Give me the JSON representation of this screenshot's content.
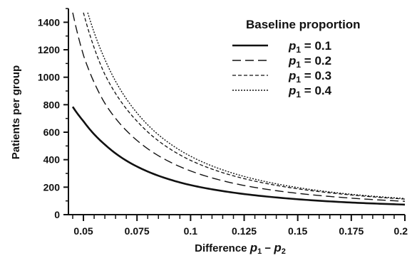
{
  "chart_data": {
    "type": "line",
    "title": "",
    "xlabel": {
      "prefix": "Difference ",
      "var_a": "p",
      "sub_a": "1",
      "minus": " − ",
      "var_b": "p",
      "sub_b": "2"
    },
    "ylabel": "Patients per group",
    "xlim": [
      0.043,
      0.2
    ],
    "ylim": [
      0,
      1500
    ],
    "x_ticks": [
      {
        "value": 0.05,
        "label": "0.05"
      },
      {
        "value": 0.075,
        "label": "0.075"
      },
      {
        "value": 0.1,
        "label": "0.1"
      },
      {
        "value": 0.125,
        "label": "0.125"
      },
      {
        "value": 0.15,
        "label": "0.15"
      },
      {
        "value": 0.175,
        "label": "0.175"
      },
      {
        "value": 0.2,
        "label": "0.2"
      }
    ],
    "x_minor_step": 0.005,
    "y_ticks": [
      {
        "value": 0,
        "label": "0"
      },
      {
        "value": 200,
        "label": "200"
      },
      {
        "value": 400,
        "label": "400"
      },
      {
        "value": 600,
        "label": "600"
      },
      {
        "value": 800,
        "label": "800"
      },
      {
        "value": 1000,
        "label": "1000"
      },
      {
        "value": 1200,
        "label": "1200"
      },
      {
        "value": 1400,
        "label": "1400"
      }
    ],
    "y_minor_step": 100,
    "legend": {
      "title": "Baseline proportion",
      "position": "top-right"
    },
    "series": [
      {
        "name": {
          "var": "p",
          "sub": "1",
          "rest": " = 0.1"
        },
        "p1": 0.1,
        "line_style": "solid",
        "x": [
          0.045,
          0.05,
          0.06,
          0.075,
          0.1,
          0.125,
          0.15,
          0.175,
          0.2
        ],
        "y": [
          785,
          680,
          510,
          350,
          215,
          150,
          112,
          88,
          73
        ]
      },
      {
        "name": {
          "var": "p",
          "sub": "1",
          "rest": " = 0.2"
        },
        "p1": 0.2,
        "line_style": "long-dash",
        "x": [
          0.045,
          0.05,
          0.06,
          0.075,
          0.1,
          0.125,
          0.15,
          0.175,
          0.2
        ],
        "y": [
          1470,
          1160,
          810,
          540,
          318,
          212,
          155,
          120,
          97
        ]
      },
      {
        "name": {
          "var": "p",
          "sub": "1",
          "rest": " = 0.3"
        },
        "p1": 0.3,
        "line_style": "dash",
        "x": [
          0.05,
          0.06,
          0.075,
          0.1,
          0.125,
          0.15,
          0.175,
          0.2
        ],
        "y": [
          1470,
          1020,
          680,
          395,
          262,
          188,
          143,
          113
        ]
      },
      {
        "name": {
          "var": "p",
          "sub": "1",
          "rest": " = 0.4"
        },
        "p1": 0.4,
        "line_style": "dot",
        "x": [
          0.052,
          0.06,
          0.075,
          0.1,
          0.125,
          0.15,
          0.175,
          0.2
        ],
        "y": [
          1470,
          1130,
          740,
          425,
          278,
          197,
          148,
          117
        ]
      }
    ]
  }
}
